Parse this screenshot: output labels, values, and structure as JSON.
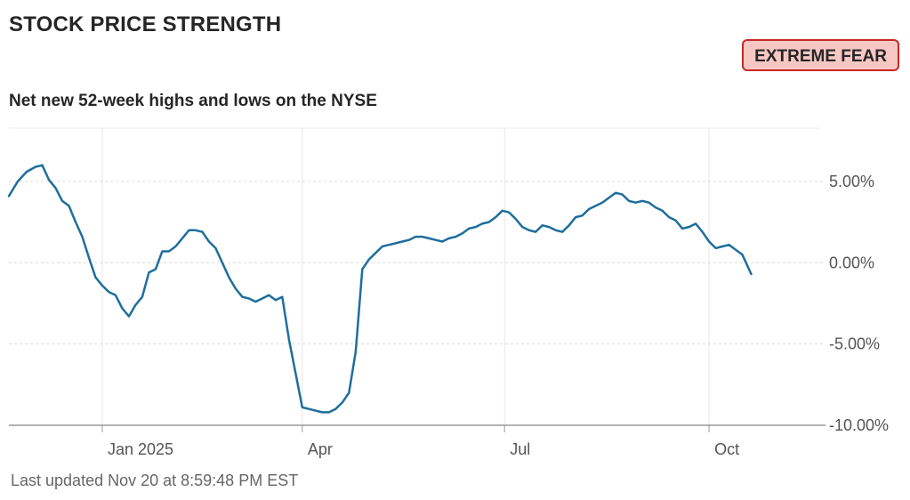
{
  "header": {
    "title": "STOCK PRICE STRENGTH",
    "badge": "EXTREME FEAR"
  },
  "footer": {
    "last_updated": "Last updated Nov 20 at 8:59:48 PM EST"
  },
  "colors": {
    "line": "#1f6e9c",
    "badge_bg": "#f7c7c3",
    "badge_border": "#c62828",
    "grid": "#d9d9d9",
    "axis": "#999999"
  },
  "chart_data": {
    "type": "line",
    "title": "Net new 52-week highs and lows on the NYSE",
    "xlabel": "",
    "ylabel": "",
    "ylim": [
      -10,
      8.5
    ],
    "y_ticks": [
      {
        "value": 5,
        "label": "5.00%"
      },
      {
        "value": 0,
        "label": "0.00%"
      },
      {
        "value": -5,
        "label": "-5.00%"
      },
      {
        "value": -10,
        "label": "-10.00%"
      }
    ],
    "x_range": [
      "2024-11-20",
      "2025-11-20"
    ],
    "x_ticks": [
      {
        "date": "2025-01-01",
        "label": "Jan 2025"
      },
      {
        "date": "2025-04-01",
        "label": "Apr"
      },
      {
        "date": "2025-07-01",
        "label": "Jul"
      },
      {
        "date": "2025-10-01",
        "label": "Oct"
      }
    ],
    "grid": true,
    "series": [
      {
        "points": [
          [
            "2024-11-20",
            4.1
          ],
          [
            "2024-11-24",
            5.0
          ],
          [
            "2024-11-28",
            5.6
          ],
          [
            "2024-12-02",
            5.9
          ],
          [
            "2024-12-05",
            6.0
          ],
          [
            "2024-12-08",
            5.1
          ],
          [
            "2024-12-11",
            4.6
          ],
          [
            "2024-12-14",
            3.8
          ],
          [
            "2024-12-17",
            3.5
          ],
          [
            "2024-12-20",
            2.5
          ],
          [
            "2024-12-23",
            1.6
          ],
          [
            "2024-12-26",
            0.3
          ],
          [
            "2024-12-29",
            -0.9
          ],
          [
            "2025-01-01",
            -1.4
          ],
          [
            "2025-01-04",
            -1.8
          ],
          [
            "2025-01-07",
            -2.0
          ],
          [
            "2025-01-10",
            -2.8
          ],
          [
            "2025-01-13",
            -3.3
          ],
          [
            "2025-01-16",
            -2.6
          ],
          [
            "2025-01-19",
            -2.1
          ],
          [
            "2025-01-22",
            -0.6
          ],
          [
            "2025-01-25",
            -0.4
          ],
          [
            "2025-01-28",
            0.7
          ],
          [
            "2025-01-31",
            0.7
          ],
          [
            "2025-02-03",
            1.0
          ],
          [
            "2025-02-06",
            1.5
          ],
          [
            "2025-02-09",
            2.0
          ],
          [
            "2025-02-12",
            2.0
          ],
          [
            "2025-02-15",
            1.9
          ],
          [
            "2025-02-18",
            1.3
          ],
          [
            "2025-02-21",
            0.9
          ],
          [
            "2025-02-24",
            0.0
          ],
          [
            "2025-02-27",
            -0.9
          ],
          [
            "2025-03-02",
            -1.6
          ],
          [
            "2025-03-05",
            -2.1
          ],
          [
            "2025-03-08",
            -2.2
          ],
          [
            "2025-03-11",
            -2.4
          ],
          [
            "2025-03-14",
            -2.2
          ],
          [
            "2025-03-17",
            -2.0
          ],
          [
            "2025-03-20",
            -2.3
          ],
          [
            "2025-03-23",
            -2.1
          ],
          [
            "2025-03-26",
            -4.7
          ],
          [
            "2025-03-29",
            -6.8
          ],
          [
            "2025-04-01",
            -8.9
          ],
          [
            "2025-04-04",
            -9.0
          ],
          [
            "2025-04-07",
            -9.1
          ],
          [
            "2025-04-10",
            -9.2
          ],
          [
            "2025-04-13",
            -9.2
          ],
          [
            "2025-04-16",
            -9.0
          ],
          [
            "2025-04-19",
            -8.6
          ],
          [
            "2025-04-22",
            -8.0
          ],
          [
            "2025-04-25",
            -5.5
          ],
          [
            "2025-04-28",
            -0.4
          ],
          [
            "2025-05-01",
            0.2
          ],
          [
            "2025-05-04",
            0.6
          ],
          [
            "2025-05-07",
            1.0
          ],
          [
            "2025-05-10",
            1.1
          ],
          [
            "2025-05-13",
            1.2
          ],
          [
            "2025-05-16",
            1.3
          ],
          [
            "2025-05-19",
            1.4
          ],
          [
            "2025-05-22",
            1.6
          ],
          [
            "2025-05-25",
            1.6
          ],
          [
            "2025-05-28",
            1.5
          ],
          [
            "2025-05-31",
            1.4
          ],
          [
            "2025-06-03",
            1.3
          ],
          [
            "2025-06-06",
            1.5
          ],
          [
            "2025-06-09",
            1.6
          ],
          [
            "2025-06-12",
            1.8
          ],
          [
            "2025-06-15",
            2.1
          ],
          [
            "2025-06-18",
            2.2
          ],
          [
            "2025-06-21",
            2.4
          ],
          [
            "2025-06-24",
            2.5
          ],
          [
            "2025-06-27",
            2.8
          ],
          [
            "2025-06-30",
            3.2
          ],
          [
            "2025-07-03",
            3.1
          ],
          [
            "2025-07-06",
            2.7
          ],
          [
            "2025-07-09",
            2.2
          ],
          [
            "2025-07-12",
            2.0
          ],
          [
            "2025-07-15",
            1.9
          ],
          [
            "2025-07-18",
            2.3
          ],
          [
            "2025-07-21",
            2.2
          ],
          [
            "2025-07-24",
            2.0
          ],
          [
            "2025-07-27",
            1.9
          ],
          [
            "2025-07-30",
            2.3
          ],
          [
            "2025-08-02",
            2.8
          ],
          [
            "2025-08-05",
            2.9
          ],
          [
            "2025-08-08",
            3.3
          ],
          [
            "2025-08-11",
            3.5
          ],
          [
            "2025-08-14",
            3.7
          ],
          [
            "2025-08-17",
            4.0
          ],
          [
            "2025-08-20",
            4.3
          ],
          [
            "2025-08-23",
            4.2
          ],
          [
            "2025-08-26",
            3.8
          ],
          [
            "2025-08-29",
            3.7
          ],
          [
            "2025-09-01",
            3.8
          ],
          [
            "2025-09-04",
            3.7
          ],
          [
            "2025-09-07",
            3.4
          ],
          [
            "2025-09-10",
            3.2
          ],
          [
            "2025-09-13",
            2.8
          ],
          [
            "2025-09-16",
            2.6
          ],
          [
            "2025-09-19",
            2.1
          ],
          [
            "2025-09-22",
            2.2
          ],
          [
            "2025-09-25",
            2.4
          ],
          [
            "2025-09-28",
            1.9
          ],
          [
            "2025-10-01",
            1.3
          ],
          [
            "2025-10-04",
            0.9
          ],
          [
            "2025-10-07",
            1.0
          ],
          [
            "2025-10-10",
            1.1
          ],
          [
            "2025-10-13",
            0.8
          ],
          [
            "2025-10-16",
            0.5
          ],
          [
            "2025-10-20",
            -0.7
          ]
        ]
      }
    ]
  }
}
